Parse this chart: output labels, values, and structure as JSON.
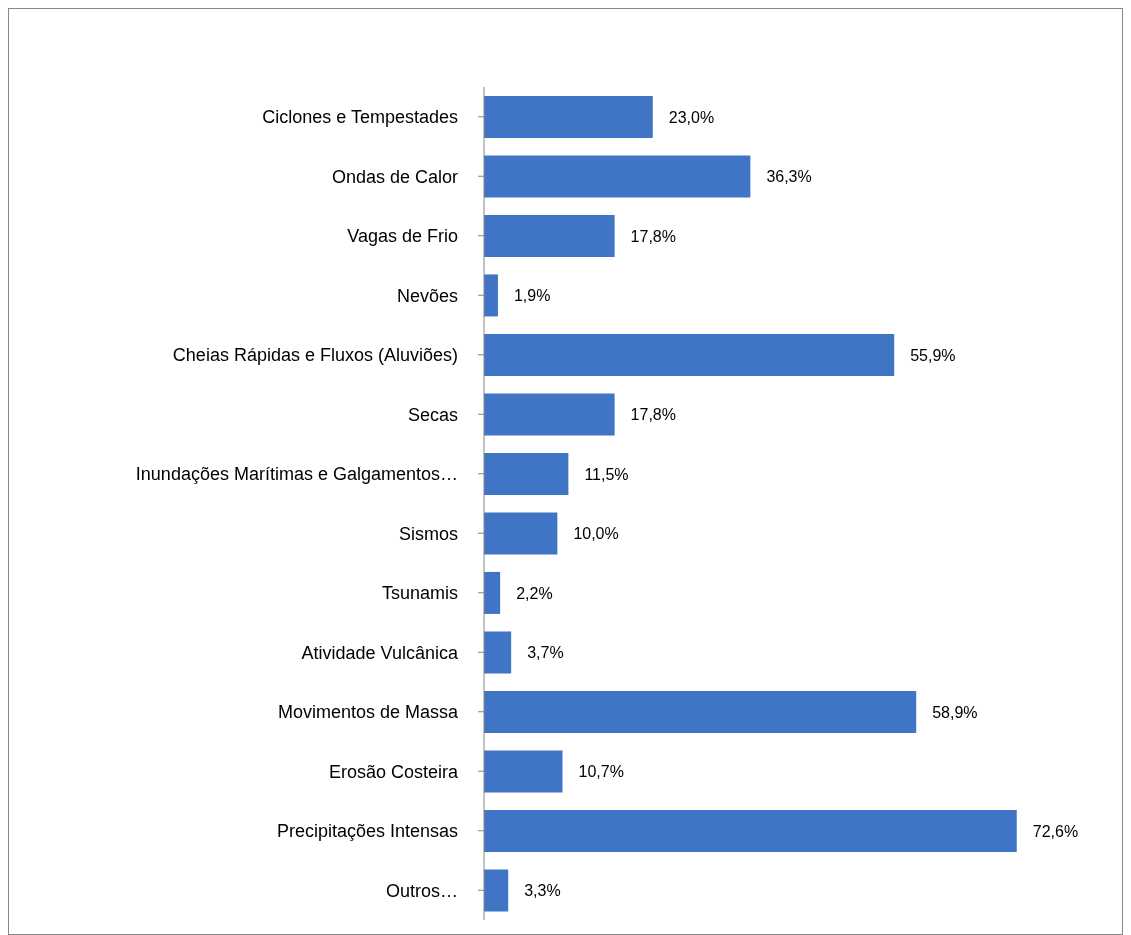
{
  "chart_data": {
    "type": "bar",
    "orientation": "horizontal",
    "color": "#3f75c4",
    "categories": [
      "Ciclones e Tempestades",
      "Ondas de Calor",
      "Vagas de Frio",
      "Nevões",
      "Cheias Rápidas e Fluxos (Aluviões)",
      "Secas",
      "Inundações Marítimas e Galgamentos…",
      "Sismos",
      "Tsunamis",
      "Atividade Vulcânica",
      "Movimentos de Massa",
      "Erosão Costeira",
      "Precipitações Intensas",
      "Outros…"
    ],
    "values": [
      23.0,
      36.3,
      17.8,
      1.9,
      55.9,
      17.8,
      11.5,
      10.0,
      2.2,
      3.7,
      58.9,
      10.7,
      72.6,
      3.3
    ],
    "value_labels": [
      "23,0%",
      "36,3%",
      "17,8%",
      "1,9%",
      "55,9%",
      "17,8%",
      "11,5%",
      "10,0%",
      "2,2%",
      "3,7%",
      "58,9%",
      "10,7%",
      "72,6%",
      "3,3%"
    ],
    "tick_labels": "y"
  }
}
